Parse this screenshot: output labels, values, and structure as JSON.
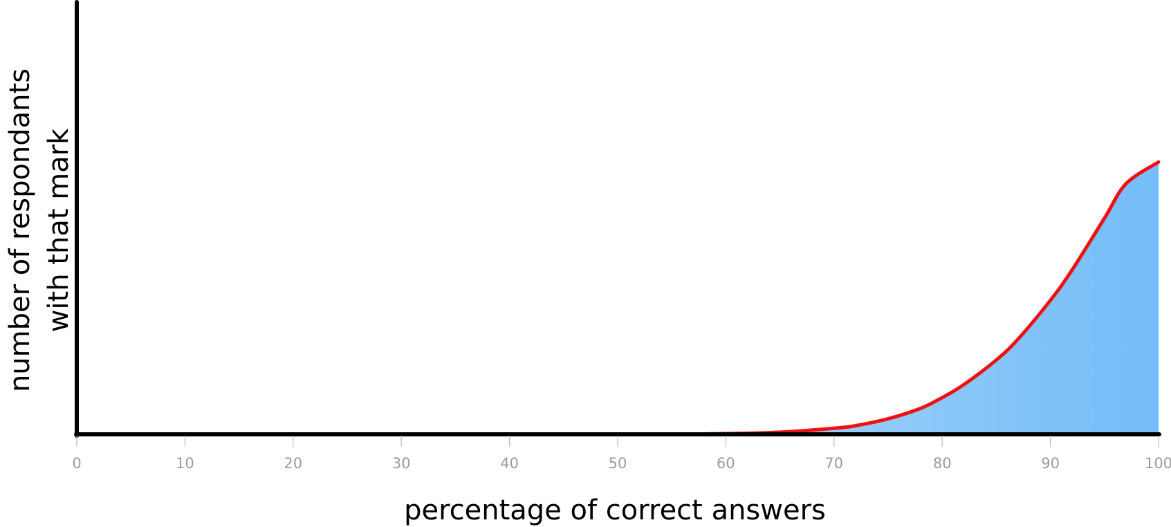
{
  "chart_data": {
    "type": "area",
    "title": "",
    "xlabel": "percentage of correct answers",
    "ylabel_lines": [
      "number of respondants",
      "with that mark"
    ],
    "xlim": [
      0,
      100
    ],
    "ylim": [
      0,
      1
    ],
    "x_ticks": [
      "0",
      "10",
      "20",
      "30",
      "40",
      "50",
      "60",
      "70",
      "80",
      "90",
      "100"
    ],
    "y_ticks_shown": false,
    "grid": false,
    "legend": "none",
    "series": [
      {
        "x": [
          0,
          10,
          20,
          30,
          40,
          50,
          55,
          60,
          65,
          70,
          72,
          75,
          78,
          80,
          82,
          85,
          87,
          90,
          92,
          95,
          97,
          100
        ],
        "values": [
          0,
          0,
          0,
          0,
          0,
          0,
          0.0003,
          0.0015,
          0.005,
          0.014,
          0.02,
          0.036,
          0.06,
          0.085,
          0.115,
          0.172,
          0.22,
          0.31,
          0.38,
          0.5,
          0.58,
          0.63
        ]
      }
    ],
    "colors": {
      "line": "#ee1111",
      "fill_start": "#e3f1fd",
      "fill_end": "#74bdf8",
      "axis": "#000000",
      "tick_label": "#9a9a9a"
    }
  }
}
